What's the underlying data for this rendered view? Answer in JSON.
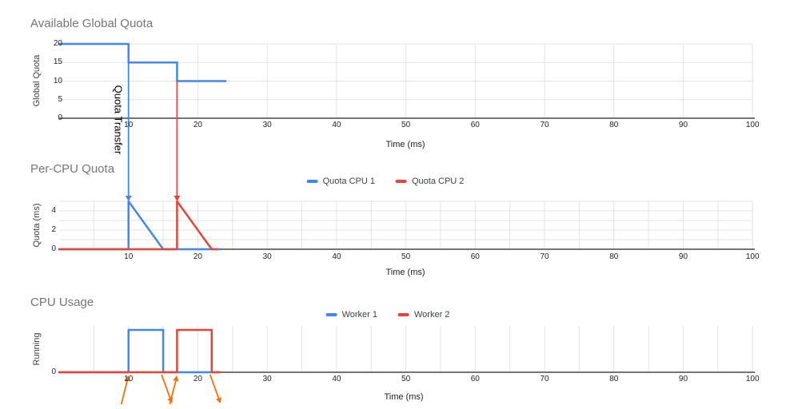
{
  "colors": {
    "series_blue": "#4285F4",
    "series_red": "#EA4335",
    "annotation_orange": "#FF6D01",
    "gridline": "#e3e3e3",
    "axis_line": "#757575",
    "title_text": "#757575",
    "tick_text": "#202124"
  },
  "chart_data": [
    {
      "type": "line",
      "title": "Available Global Quota",
      "xlabel": "Time (ms)",
      "ylabel": "Global Quota",
      "xlim": [
        0,
        100
      ],
      "ylim": [
        0,
        20
      ],
      "x_ticks": [
        10,
        20,
        30,
        40,
        50,
        60,
        70,
        80,
        90,
        100
      ],
      "y_ticks": [
        0,
        5,
        10,
        15,
        20
      ],
      "x_grid_step": 10,
      "grid": true,
      "legend_position": "none",
      "series": [
        {
          "name": "Global Quota",
          "color": "#4285F4",
          "points": [
            [
              0,
              20
            ],
            [
              10,
              20
            ],
            [
              10,
              15
            ],
            [
              17,
              15
            ],
            [
              17,
              10
            ],
            [
              24,
              10
            ]
          ]
        }
      ]
    },
    {
      "type": "line",
      "title": "Per-CPU Quota",
      "xlabel": "Time (ms)",
      "ylabel": "Quota (ms)",
      "xlim": [
        0,
        100
      ],
      "ylim": [
        0,
        5
      ],
      "x_ticks": [
        10,
        20,
        30,
        40,
        50,
        60,
        70,
        80,
        90,
        100
      ],
      "y_ticks": [
        0,
        2,
        4
      ],
      "x_grid_step": 5,
      "grid": true,
      "legend_position": "top",
      "series": [
        {
          "name": "Quota CPU 1",
          "color": "#4285F4",
          "points": [
            [
              0,
              0
            ],
            [
              10,
              0
            ],
            [
              10,
              5
            ],
            [
              15,
              0
            ],
            [
              23.3,
              0
            ]
          ]
        },
        {
          "name": "Quota CPU 2",
          "color": "#EA4335",
          "points": [
            [
              0,
              0
            ],
            [
              17,
              0
            ],
            [
              17,
              5
            ],
            [
              22,
              0
            ],
            [
              22.8,
              0
            ]
          ]
        }
      ]
    },
    {
      "type": "line",
      "title": "CPU Usage",
      "xlabel": "Time (ms)",
      "ylabel": "Running",
      "xlim": [
        0,
        100
      ],
      "ylim": [
        0,
        1
      ],
      "x_ticks": [
        10,
        20,
        30,
        40,
        50,
        60,
        70,
        80,
        90,
        100
      ],
      "y_ticks": [
        0
      ],
      "x_grid_step": 5,
      "grid": true,
      "legend_position": "top",
      "series": [
        {
          "name": "Worker 1",
          "color": "#4285F4",
          "points": [
            [
              0,
              0
            ],
            [
              10,
              0
            ],
            [
              10,
              1
            ],
            [
              15,
              1
            ],
            [
              15,
              0
            ],
            [
              23,
              0
            ]
          ]
        },
        {
          "name": "Worker 2",
          "color": "#EA4335",
          "points": [
            [
              0,
              0
            ],
            [
              17,
              0
            ],
            [
              17,
              1
            ],
            [
              22,
              1
            ],
            [
              22,
              0
            ],
            [
              23.2,
              0
            ]
          ]
        }
      ]
    }
  ],
  "annotations": {
    "transfer_label": "Quota Transfer",
    "transfer_arrows": [
      {
        "t": 10,
        "from_value": 15,
        "color": "#4285F4"
      },
      {
        "t": 17,
        "from_value": 10,
        "color": "#EA4335"
      }
    ],
    "event_arrows": [
      {
        "t": 10,
        "dir": "up"
      },
      {
        "t": 15,
        "dir": "down"
      },
      {
        "t": 17,
        "dir": "up"
      },
      {
        "t": 22,
        "dir": "down"
      }
    ]
  }
}
